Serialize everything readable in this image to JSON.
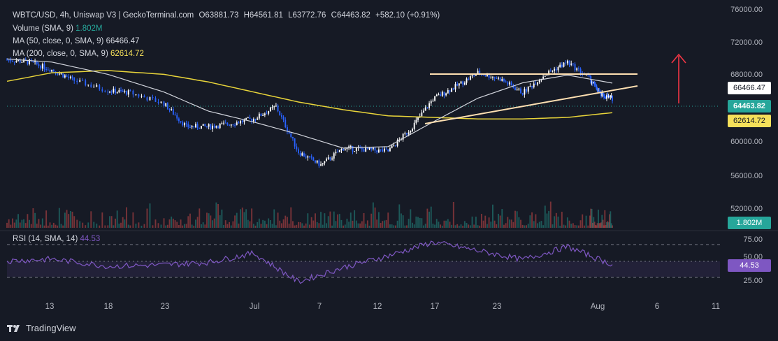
{
  "header": {
    "title": "WBTC/USD, 4h, Uniswap V3 | GeckoTerminal.com",
    "open": "O63881.73",
    "high": "H64561.81",
    "low": "L63772.76",
    "close": "C64463.82",
    "change": "+582.10 (+0.91%)",
    "volume_label": "Volume (SMA, 9)",
    "volume_value": "1.802M",
    "ma50_label": "MA (50, close, 0, SMA, 9)",
    "ma50_value": "66466.47",
    "ma200_label": "MA (200, close, 0, SMA, 9)",
    "ma200_value": "62614.72",
    "rsi_label": "RSI (14, SMA, 14)",
    "rsi_value": "44.53"
  },
  "price_labels": {
    "ma50": "66466.47",
    "last": "64463.82",
    "ma200": "62614.72",
    "volume": "1.802M",
    "rsi": "44.53"
  },
  "y_ticks": [
    "76000.00",
    "72000.00",
    "68000.00",
    "60000.00",
    "56000.00",
    "52000.00"
  ],
  "rsi_ticks": [
    "75.00",
    "50.00",
    "25.00"
  ],
  "x_ticks": [
    "13",
    "18",
    "23",
    "Jul",
    "7",
    "12",
    "17",
    "23",
    "Aug",
    "6",
    "11"
  ],
  "logo_text": "TradingView",
  "colors": {
    "up": "#ffffff",
    "down": "#2962ff",
    "ma50": "#d1d4dc",
    "ma200": "#e8d43a",
    "rsi": "#7e57c2",
    "arrow": "#f23645",
    "trendline": "#ffe0b2",
    "vol_up": "#26a69a",
    "vol_down": "#ef5350"
  },
  "chart_data": {
    "type": "line",
    "series": [
      {
        "name": "WBTC/USD",
        "x": [
          "Jun 9",
          "Jun 11",
          "Jun 13",
          "Jun 15",
          "Jun 18",
          "Jun 20",
          "Jun 23",
          "Jun 25",
          "Jun 27",
          "Jun 29",
          "Jul 1",
          "Jul 3",
          "Jul 5",
          "Jul 7",
          "Jul 9",
          "Jul 11",
          "Jul 13",
          "Jul 15",
          "Jul 17",
          "Jul 19",
          "Jul 21",
          "Jul 23",
          "Jul 25",
          "Jul 27",
          "Jul 29",
          "Jul 31",
          "Aug 1",
          "Aug 2"
        ],
        "values": [
          69500,
          69200,
          68200,
          66800,
          65500,
          65200,
          63800,
          60800,
          60800,
          61200,
          61800,
          63400,
          57500,
          55800,
          58000,
          57800,
          57600,
          60500,
          64400,
          66000,
          67800,
          67000,
          65200,
          67600,
          69200,
          67000,
          64900,
          64464
        ]
      },
      {
        "name": "MA (50, close, 0, SMA, 9)",
        "x": [
          "Jun 9",
          "Jun 13",
          "Jun 18",
          "Jun 23",
          "Jun 27",
          "Jul 1",
          "Jul 5",
          "Jul 9",
          "Jul 13",
          "Jul 17",
          "Jul 21",
          "Jul 25",
          "Jul 29",
          "Aug 2"
        ],
        "values": [
          69600,
          69200,
          67600,
          65300,
          62800,
          61400,
          59800,
          58000,
          58200,
          61400,
          64500,
          66500,
          67500,
          66466
        ]
      },
      {
        "name": "MA (200, close, 0, SMA, 9)",
        "x": [
          "Jun 9",
          "Jun 13",
          "Jun 18",
          "Jun 23",
          "Jun 27",
          "Jul 1",
          "Jul 5",
          "Jul 9",
          "Jul 13",
          "Jul 17",
          "Jul 21",
          "Jul 25",
          "Jul 29",
          "Aug 2"
        ],
        "values": [
          66700,
          67800,
          68100,
          67600,
          66600,
          65300,
          64000,
          63000,
          62200,
          62000,
          61800,
          61800,
          62000,
          62615
        ]
      },
      {
        "name": "RSI (14, SMA, 14)",
        "x": [
          "Jun 9",
          "Jun 13",
          "Jun 18",
          "Jun 23",
          "Jun 27",
          "Jul 1",
          "Jul 5",
          "Jul 9",
          "Jul 13",
          "Jul 17",
          "Jul 21",
          "Jul 25",
          "Jul 29",
          "Aug 2"
        ],
        "values": [
          50,
          53,
          42,
          44,
          48,
          62,
          18,
          40,
          58,
          79,
          66,
          52,
          72,
          44.53
        ]
      }
    ],
    "ylim": [
      50000,
      76000
    ],
    "rsi_ylim": [
      0,
      100
    ],
    "rsi_bands": [
      75,
      50,
      25
    ],
    "grid": false
  }
}
